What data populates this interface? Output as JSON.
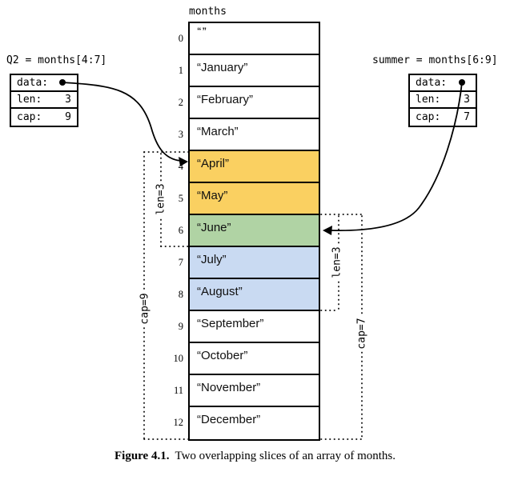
{
  "array": {
    "title": "months",
    "cells": [
      {
        "index": "0",
        "value": "“”",
        "fill": "white"
      },
      {
        "index": "1",
        "value": "“January”",
        "fill": "white"
      },
      {
        "index": "2",
        "value": "“February”",
        "fill": "white"
      },
      {
        "index": "3",
        "value": "“March”",
        "fill": "white"
      },
      {
        "index": "4",
        "value": "“April”",
        "fill": "yellow"
      },
      {
        "index": "5",
        "value": "“May”",
        "fill": "yellow"
      },
      {
        "index": "6",
        "value": "“June”",
        "fill": "green"
      },
      {
        "index": "7",
        "value": "“July”",
        "fill": "blue"
      },
      {
        "index": "8",
        "value": "“August”",
        "fill": "blue"
      },
      {
        "index": "9",
        "value": "“September”",
        "fill": "white"
      },
      {
        "index": "10",
        "value": "“October”",
        "fill": "white"
      },
      {
        "index": "11",
        "value": "“November”",
        "fill": "white"
      },
      {
        "index": "12",
        "value": "“December”",
        "fill": "white"
      }
    ]
  },
  "slice_q2": {
    "title": "Q2 = months[4:7]",
    "rows": [
      {
        "label": "data:",
        "value": ""
      },
      {
        "label": "len:",
        "value": "3"
      },
      {
        "label": "cap:",
        "value": "9"
      }
    ]
  },
  "slice_summer": {
    "title": "summer = months[6:9]",
    "rows": [
      {
        "label": "data:",
        "value": ""
      },
      {
        "label": "len:",
        "value": "3"
      },
      {
        "label": "cap:",
        "value": "7"
      }
    ]
  },
  "brackets": {
    "q2_len": "len=3",
    "q2_cap": "cap=9",
    "summer_len": "len=3",
    "summer_cap": "cap=7"
  },
  "caption": {
    "label": "Figure 4.1.",
    "text": "Two overlapping slices of an array of months."
  },
  "colors": {
    "white": "#ffffff",
    "yellow": "#fad061",
    "green": "#b0d3a4",
    "blue": "#c9daf2",
    "line": "#000000"
  }
}
